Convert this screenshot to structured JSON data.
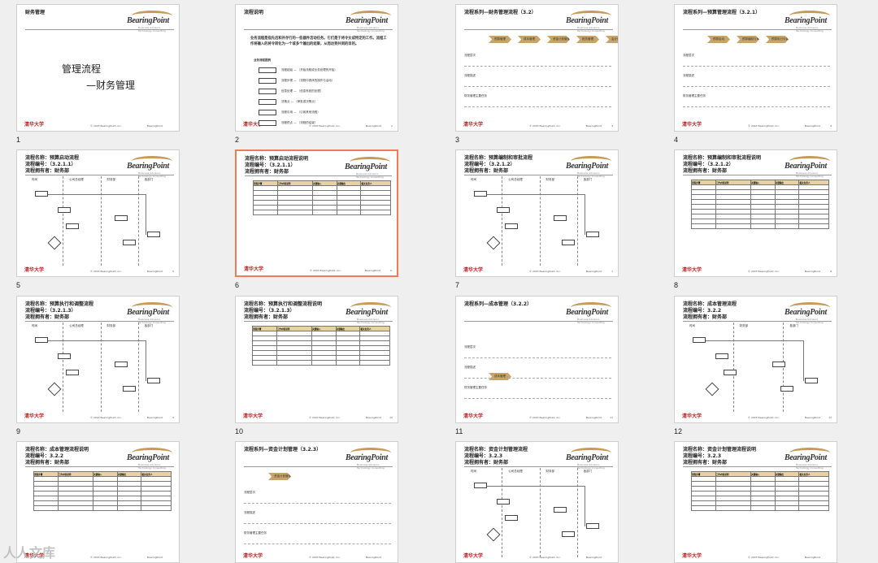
{
  "brand": {
    "logo": "BearingPoint",
    "tagline": "Business Advisors. Technology Consulting",
    "copyright": "© 2003 BearingPoint, Inc.",
    "footer_bp": "BearingPoint",
    "school_logo": "清华大学"
  },
  "slides": [
    {
      "num": "1",
      "title": "财务管理",
      "line1": "管理流程",
      "line2": "—财务管理",
      "page": ""
    },
    {
      "num": "2",
      "title": "流程说明",
      "page": "2",
      "body": "业务流程是指先后和并存行的一些器件活动任务。它们是于将令女成特定的工作。流程工作将输入的将令转化为一个或多个输出的结果，从而达到共同的目的。",
      "legend_title": "业务流程图例",
      "legend": [
        "流程起始 — （开始流程或业务处理的开始）",
        "流程步骤 — （流程中具体的操作与活动）",
        "信息处理 — （信息系统的处理）",
        "决策点 — （审批或决策点）",
        "流程引用 — （引用其他流程）",
        "流程终点 — （流程的结束）"
      ]
    },
    {
      "num": "3",
      "title": "流程系列—财务管理流程（3.2）",
      "page": "3",
      "chevrons": [
        "预算管理",
        "成本管理",
        "资金计划管理",
        "税务管理",
        "会计管理"
      ],
      "rows": [
        "流程层次",
        "流程描述",
        "财务管理主要任务"
      ]
    },
    {
      "num": "4",
      "title": "流程系列—预算管理流程（3.2.1）",
      "page": "4",
      "chevrons": [
        "预算启动",
        "预算编制与审批",
        "预算执行与调整"
      ],
      "rows": [
        "流程层次",
        "流程描述",
        "财务管理主要任务"
      ]
    },
    {
      "num": "5",
      "title": "流程名称：预算启动流程",
      "code": "流程编号：（3.2.1.1）",
      "owner": "流程拥有者：财务部",
      "page": "5",
      "lanes": [
        "时间",
        "公司总经理",
        "财务部",
        "各部门"
      ]
    },
    {
      "num": "6",
      "title": "流程名称：预算启动流程说明",
      "code": "流程编号：（3.2.1.1）",
      "owner": "流程拥有者：财务部",
      "page": "6",
      "headers": [
        "流程步骤",
        "工作内容说明",
        "关键输入",
        "关键输出",
        "相关负责人"
      ],
      "selected": true
    },
    {
      "num": "7",
      "title": "流程名称：预算编制和审批流程",
      "code": "流程编号：（3.2.1.2）",
      "owner": "流程拥有者：财务部",
      "page": "7",
      "lanes": [
        "时间",
        "公司总经理",
        "财务部",
        "各部门"
      ]
    },
    {
      "num": "8",
      "title": "流程名称：预算编制和审批流程说明",
      "code": "流程编号：（3.2.1.2）",
      "owner": "流程拥有者：财务部",
      "page": "8",
      "headers": [
        "流程步骤",
        "工作内容说明",
        "关键输入",
        "关键输出",
        "相关负责人"
      ]
    },
    {
      "num": "9",
      "title": "流程名称：预算执行和调整流程",
      "code": "流程编号：（3.2.1.3）",
      "owner": "流程拥有者：财务部",
      "page": "9",
      "lanes": [
        "时间",
        "公司总经理",
        "财务部",
        "各部门"
      ]
    },
    {
      "num": "10",
      "title": "流程名称：预算执行和调整流程说明",
      "code": "流程编号：（3.2.1.3）",
      "owner": "流程拥有者：财务部",
      "page": "10",
      "headers": [
        "流程步骤",
        "工作内容说明",
        "关键输入",
        "关键输出",
        "相关负责人"
      ]
    },
    {
      "num": "11",
      "title": "流程系列—成本管理（3.2.2）",
      "page": "11",
      "chevrons": [
        "成本管理"
      ],
      "rows": [
        "流程层次",
        "流程描述",
        "财务管理主要任务"
      ]
    },
    {
      "num": "12",
      "title": "流程名称：成本管理流程",
      "code": "流程编号：3.2.2",
      "owner": "流程拥有者：财务部",
      "page": "12",
      "lanes": [
        "时间",
        "财务部",
        "各部门"
      ]
    },
    {
      "num": "",
      "title": "流程名称：成本管理流程说明",
      "code": "流程编号：3.2.2",
      "owner": "流程拥有者：财务部",
      "page": "",
      "headers": [
        "流程步骤",
        "工作内容说明",
        "关键输入",
        "关键输出",
        "相关负责人"
      ]
    },
    {
      "num": "",
      "title": "流程系列—资金计划管理（3.2.3）",
      "page": "",
      "chevrons": [
        "资金计划管理"
      ],
      "rows": [
        "流程层次",
        "流程描述",
        "财务管理主要任务"
      ]
    },
    {
      "num": "",
      "title": "流程名称：资金计划管理流程",
      "code": "流程编号：3.2.3",
      "owner": "流程拥有者：财务部",
      "page": "",
      "lanes": [
        "时间",
        "公司总经理",
        "财务部",
        "各部门"
      ]
    },
    {
      "num": "",
      "title": "流程名称：资金计划管理流程说明",
      "code": "流程编号：3.2.3",
      "owner": "流程拥有者：财务部",
      "page": "",
      "headers": [
        "流程步骤",
        "工作内容说明",
        "关键输入",
        "关键输出",
        "相关负责人"
      ]
    }
  ],
  "watermark": "人人文库"
}
